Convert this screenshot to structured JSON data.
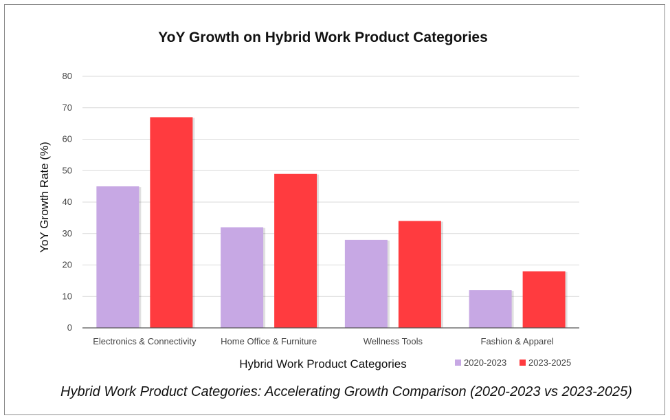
{
  "chart_data": {
    "type": "bar",
    "title": "YoY Growth on Hybrid Work Product Categories",
    "xlabel": "Hybrid Work Product Categories",
    "ylabel": "YoY Growth Rate (%)",
    "categories": [
      "Electronics & Connectivity",
      "Home Office & Furniture",
      "Wellness Tools",
      "Fashion & Apparel"
    ],
    "series": [
      {
        "name": "2020-2023",
        "color": "#c7a8e4",
        "values": [
          45,
          32,
          28,
          12
        ]
      },
      {
        "name": "2023-2025",
        "color": "#ff3b3f",
        "values": [
          67,
          49,
          34,
          18
        ]
      }
    ],
    "ylim": [
      0,
      80
    ],
    "yticks": [
      0,
      10,
      20,
      30,
      40,
      50,
      60,
      70,
      80
    ],
    "grid": true,
    "legend": "bottom-right"
  },
  "caption": "Hybrid Work Product Categories: Accelerating Growth Comparison (2020-2023 vs 2023-2025)"
}
